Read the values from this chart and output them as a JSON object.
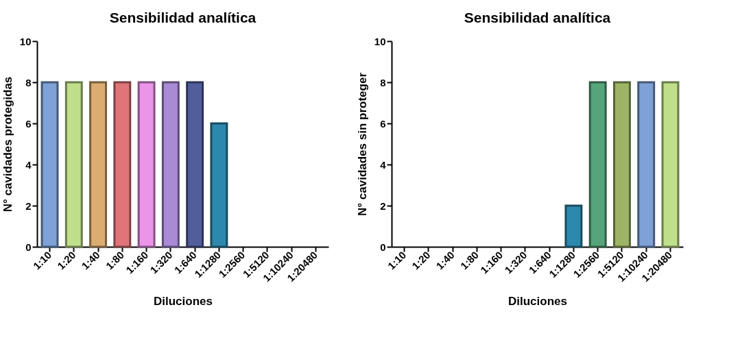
{
  "chart_data": [
    {
      "type": "bar",
      "title": "Sensibilidad analítica",
      "xlabel": "Diluciones",
      "ylabel": "N° cavidades protegidas",
      "categories": [
        "1:10",
        "1:20",
        "1:40",
        "1:80",
        "1:160",
        "1:320",
        "1:640",
        "1:1280",
        "1:2560",
        "1:5120",
        "1:10240",
        "1:20480"
      ],
      "values": [
        8,
        8,
        8,
        8,
        8,
        8,
        8,
        6,
        0,
        0,
        0,
        0
      ],
      "colors": [
        "#7ea1d6",
        "#c0df8a",
        "#dcad70",
        "#e07478",
        "#ea95e8",
        "#a88bd4",
        "#525d9c",
        "#2d88ad",
        null,
        null,
        null,
        null
      ],
      "ylim": [
        0,
        10
      ],
      "yticks": [
        0,
        2,
        4,
        6,
        8,
        10
      ],
      "grid": false
    },
    {
      "type": "bar",
      "title": "Sensibilidad analítica",
      "xlabel": "Diluciones",
      "ylabel": "N° cavidades sin proteger",
      "categories": [
        "1:10",
        "1:20",
        "1:40",
        "1:80",
        "1:160",
        "1:320",
        "1:640",
        "1:1280",
        "1:2560",
        "1:5120",
        "1:10240",
        "1:20480"
      ],
      "values": [
        0,
        0,
        0,
        0,
        0,
        0,
        0,
        2,
        8,
        8,
        8,
        8
      ],
      "colors": [
        null,
        null,
        null,
        null,
        null,
        null,
        null,
        "#2d88ad",
        "#56a57a",
        "#9db466",
        "#7ea1d6",
        "#c0df8a"
      ],
      "ylim": [
        0,
        10
      ],
      "yticks": [
        0,
        2,
        4,
        6,
        8,
        10
      ],
      "grid": false
    }
  ]
}
